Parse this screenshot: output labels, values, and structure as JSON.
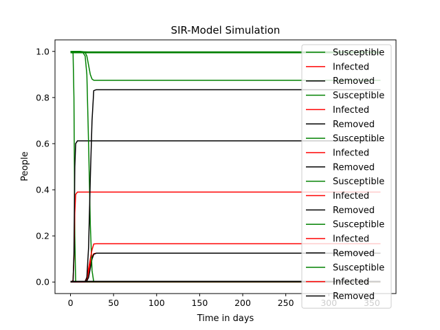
{
  "chart_data": {
    "type": "line",
    "title": "SIR-Model Simulation",
    "xlabel": "Time in days",
    "ylabel": "People",
    "xlim": [
      -18,
      378
    ],
    "ylim": [
      -0.05,
      1.05
    ],
    "xticks": [
      0,
      50,
      100,
      150,
      200,
      250,
      300,
      350
    ],
    "yticks": [
      0.0,
      0.2,
      0.4,
      0.6,
      0.8,
      1.0
    ],
    "ytick_labels": [
      "0.0",
      "0.2",
      "0.4",
      "0.6",
      "0.8",
      "1.0"
    ],
    "grid": false,
    "legend_position": "right",
    "colors": {
      "Susceptible": "#008000",
      "Infected": "#ff0000",
      "Removed": "#000000"
    },
    "legend": [
      "Susceptible",
      "Infected",
      "Removed",
      "Susceptible",
      "Infected",
      "Removed",
      "Susceptible",
      "Infected",
      "Removed",
      "Susceptible",
      "Infected",
      "Removed",
      "Susceptible",
      "Infected",
      "Removed",
      "Susceptible",
      "Infected",
      "Removed"
    ],
    "runs": [
      {
        "x": [
          0,
          2,
          3,
          4,
          5,
          6,
          8,
          10,
          360
        ],
        "S": [
          1.0,
          0.999,
          0.99,
          0.8,
          0.2,
          0.0,
          0.0,
          0.0,
          0.0
        ],
        "I": [
          0.0,
          0.001,
          0.01,
          0.1,
          0.3,
          0.38,
          0.39,
          0.39,
          0.39
        ],
        "R": [
          0.0,
          0.0,
          0.005,
          0.12,
          0.5,
          0.6,
          0.612,
          0.612,
          0.612
        ]
      },
      {
        "x": [
          0,
          10,
          14,
          17,
          19,
          21,
          23,
          25,
          27,
          30,
          360
        ],
        "S": [
          1.0,
          1.0,
          0.999,
          0.995,
          0.98,
          0.94,
          0.9,
          0.88,
          0.875,
          0.875,
          0.875
        ],
        "I": [
          0.0,
          0.0,
          0.0,
          0.002,
          0.01,
          0.04,
          0.08,
          0.11,
          0.123,
          0.125,
          0.125
        ],
        "R": [
          0.0,
          0.0,
          0.0,
          0.001,
          0.005,
          0.02,
          0.06,
          0.1,
          0.12,
          0.125,
          0.125
        ]
      },
      {
        "x": [
          0,
          10,
          14,
          17,
          19,
          21,
          23,
          25,
          27,
          30,
          360
        ],
        "S": [
          1.0,
          1.0,
          0.998,
          0.98,
          0.9,
          0.6,
          0.25,
          0.05,
          0.0,
          0.0,
          0.0
        ],
        "I": [
          0.0,
          0.0,
          0.0,
          0.003,
          0.02,
          0.06,
          0.1,
          0.14,
          0.165,
          0.166,
          0.166
        ],
        "R": [
          0.0,
          0.0,
          0.0,
          0.002,
          0.02,
          0.15,
          0.45,
          0.7,
          0.83,
          0.834,
          0.834
        ]
      },
      {
        "x": [
          0,
          20,
          360
        ],
        "S": [
          1.0,
          0.998,
          0.998
        ],
        "I": [
          0.0,
          0.001,
          0.001
        ],
        "R": [
          0.0,
          0.001,
          0.001
        ]
      },
      {
        "x": [
          0,
          20,
          360
        ],
        "S": [
          0.996,
          0.996,
          0.996
        ],
        "I": [
          0.002,
          0.002,
          0.002
        ],
        "R": [
          0.002,
          0.002,
          0.002
        ]
      },
      {
        "x": [
          0,
          20,
          360
        ],
        "S": [
          0.994,
          0.994,
          0.994
        ],
        "I": [
          0.003,
          0.003,
          0.003
        ],
        "R": [
          0.003,
          0.003,
          0.003
        ]
      }
    ]
  }
}
